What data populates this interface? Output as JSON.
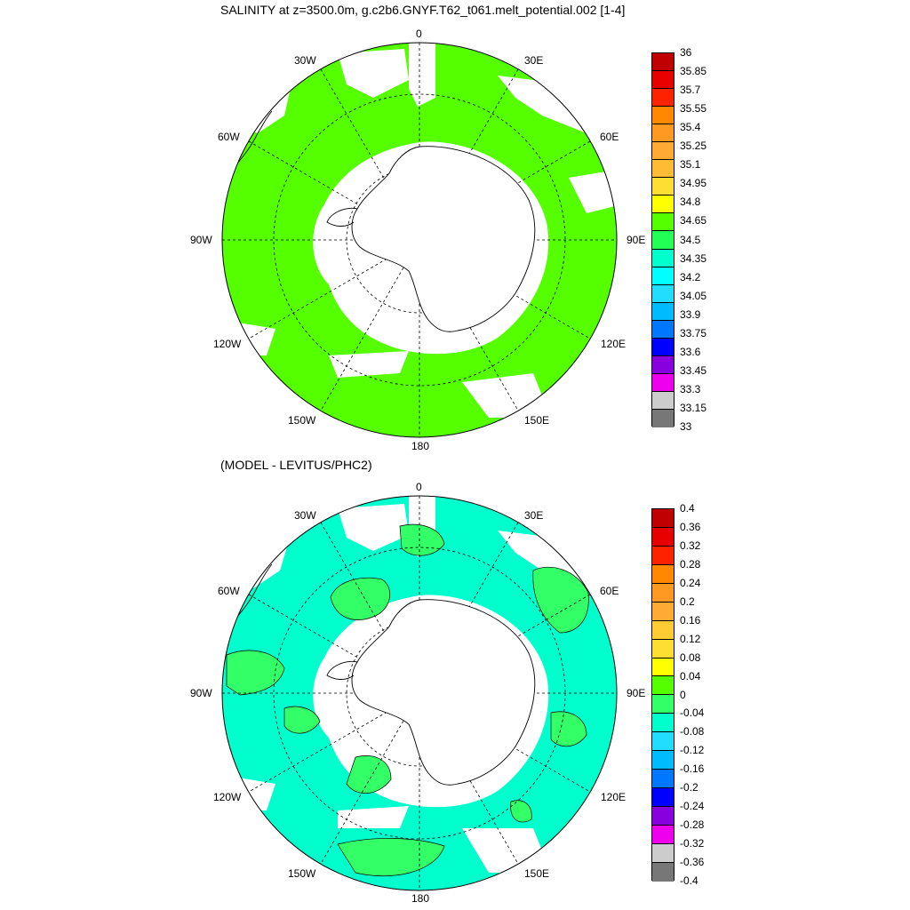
{
  "titles": {
    "top": "SALINITY at z=3500.0m, g.c2b6.GNYF.T62_t061.melt_potential.002 [1-4]",
    "bottom": "(MODEL - LEVITUS/PHC2)"
  },
  "map_labels": {
    "top": "0",
    "bottom": "180",
    "left": "90W",
    "right": "90E",
    "w30": "30W",
    "e30": "30E",
    "w60": "60W",
    "e60": "60E",
    "w120": "120W",
    "e120": "120E",
    "w150": "150W",
    "e150": "150E"
  },
  "colors": {
    "land": "#ffffff",
    "main_fill": "#55ff00",
    "diff_neg": "#00ffcc",
    "diff_pos": "#33ff66",
    "coast": "#000000",
    "grid": "#000000"
  },
  "colorbar_top": {
    "labels": [
      "36",
      "35.85",
      "35.7",
      "35.55",
      "35.4",
      "35.25",
      "35.1",
      "34.95",
      "34.8",
      "34.65",
      "34.5",
      "34.35",
      "34.2",
      "34.05",
      "33.9",
      "33.75",
      "33.6",
      "33.45",
      "33.3",
      "33.15",
      "33"
    ],
    "colors": [
      "#c00000",
      "#e60000",
      "#ff2200",
      "#ff8800",
      "#ff9922",
      "#ffaa33",
      "#ffbb33",
      "#ffdd33",
      "#ffff00",
      "#55ff00",
      "#22ff55",
      "#00ffcc",
      "#00ffff",
      "#22ddff",
      "#00bbff",
      "#0077ff",
      "#0000ff",
      "#8800dd",
      "#ee00ee",
      "#cccccc",
      "#777777"
    ]
  },
  "colorbar_bottom": {
    "labels": [
      "0.4",
      "0.36",
      "0.32",
      "0.28",
      "0.24",
      "0.2",
      "0.16",
      "0.12",
      "0.08",
      "0.04",
      "0",
      "-0.04",
      "-0.08",
      "-0.12",
      "-0.16",
      "-0.2",
      "-0.24",
      "-0.28",
      "-0.32",
      "-0.36",
      "-0.4"
    ],
    "colors": [
      "#c00000",
      "#e60000",
      "#ff2200",
      "#ff8800",
      "#ff9922",
      "#ffaa33",
      "#ffcc33",
      "#ffdd33",
      "#ffff00",
      "#55ff00",
      "#33ff66",
      "#00ffcc",
      "#22ddff",
      "#00bbff",
      "#0077ff",
      "#0000ff",
      "#8800dd",
      "#ee00ee",
      "#cccccc",
      "#777777"
    ]
  }
}
